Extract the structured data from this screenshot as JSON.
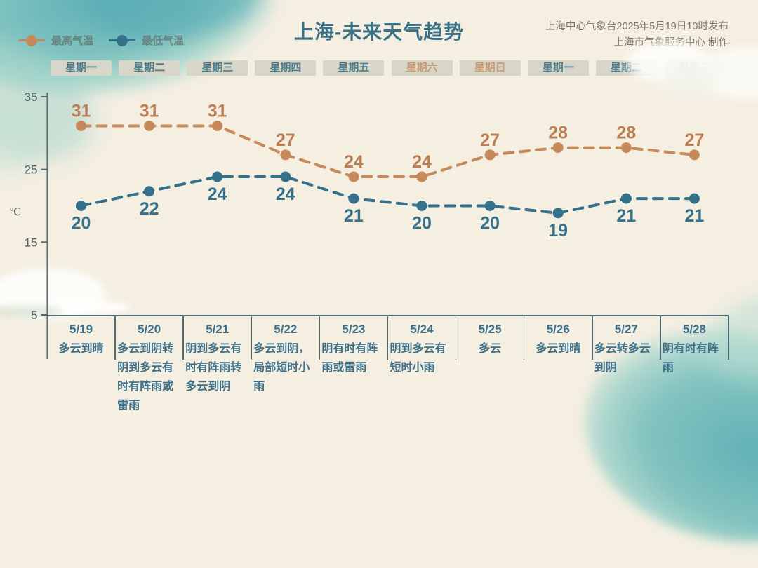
{
  "header": {
    "title": "上海-未来天气趋势",
    "publisher_line1": "上海中心气象台2025年5月19日10时发布",
    "publisher_line2": "上海市气象服务中心 制作"
  },
  "chart_data": {
    "type": "line",
    "title": "上海-未来天气趋势",
    "line_style": "dashed",
    "grid": false,
    "legend_position": "top-left",
    "ylabel": "℃",
    "ylim": [
      5,
      35
    ],
    "yticks": [
      35,
      25,
      15,
      5
    ],
    "weekdays": [
      "星期一",
      "星期二",
      "星期三",
      "星期四",
      "星期五",
      "星期六",
      "星期日",
      "星期一",
      "星期二",
      "星期三"
    ],
    "weekend_indices": [
      5,
      6
    ],
    "dates": [
      "5/19",
      "5/20",
      "5/21",
      "5/22",
      "5/23",
      "5/24",
      "5/25",
      "5/26",
      "5/27",
      "5/28"
    ],
    "weather": [
      "多云到晴",
      "多云到阴转阴到多云有时有阵雨或雷雨",
      "阴到多云有时有阵雨转多云到阴",
      "多云到阴，局部短时小雨",
      "阴有时有阵雨或雷雨",
      "阴到多云有短时小雨",
      "多云",
      "多云到晴",
      "多云转多云到阴",
      "阴有时有阵雨"
    ],
    "series": [
      {
        "name": "最高气温",
        "color": "#c6895c",
        "label_color": "#bd7f51",
        "values": [
          31,
          31,
          31,
          27,
          24,
          24,
          27,
          28,
          28,
          27
        ]
      },
      {
        "name": "最低气温",
        "color": "#35718a",
        "label_color": "#35718a",
        "values": [
          20,
          22,
          24,
          24,
          21,
          20,
          20,
          19,
          21,
          21
        ]
      }
    ]
  },
  "colors": {
    "background": "#f5efe2",
    "axis": "#5a6b6e",
    "table_line": "#4e6a72",
    "weekday_box_bg": "#d8d5c9",
    "weekday_text": "#4e7e8d",
    "weekend_text": "#c79a74",
    "day_text": "#3e7089",
    "watercolor_teal": "#5fb0b6"
  }
}
